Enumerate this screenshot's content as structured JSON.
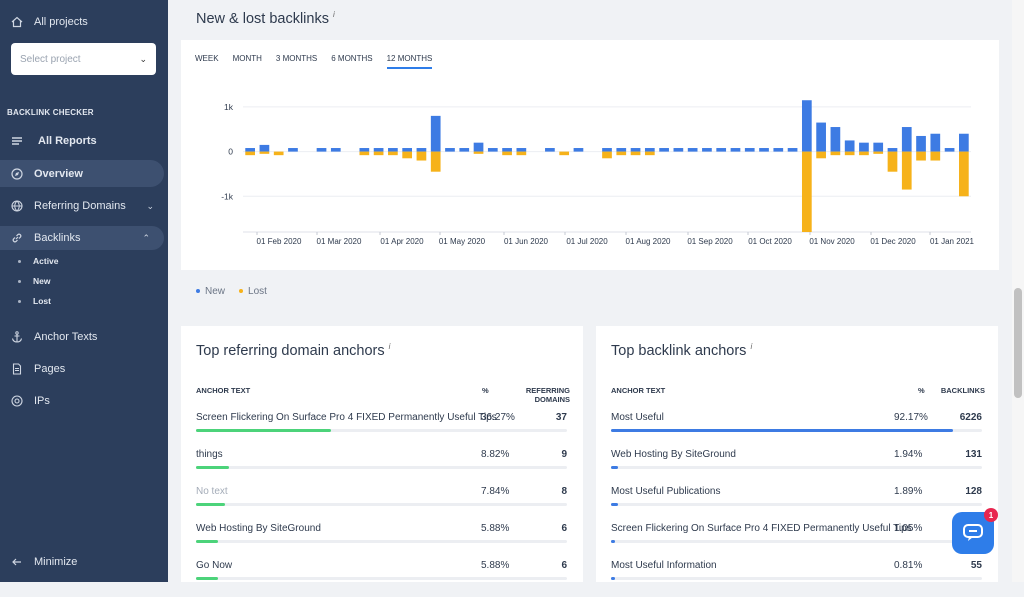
{
  "sidebar": {
    "all_projects": "All projects",
    "select_placeholder": "Select project",
    "section": "BACKLINK CHECKER",
    "all_reports": "All Reports",
    "overview": "Overview",
    "referring_domains": "Referring Domains",
    "backlinks": "Backlinks",
    "sub": [
      "Active",
      "New",
      "Lost"
    ],
    "anchor_texts": "Anchor Texts",
    "pages": "Pages",
    "ips": "IPs",
    "minimize": "Minimize"
  },
  "backlinks_panel": {
    "title": "New & lost backlinks",
    "info": "i",
    "tabs": [
      "WEEK",
      "MONTH",
      "3 MONTHS",
      "6 MONTHS",
      "12 MONTHS"
    ],
    "selected_tab": "12 MONTHS",
    "legend_new": "New",
    "legend_lost": "Lost"
  },
  "chart_data": {
    "type": "bar",
    "title": "",
    "y_tick_labels": [
      "1k",
      "0",
      "-1k"
    ],
    "ylim": [
      -1800,
      1200
    ],
    "x_tick_labels": [
      "01 Feb 2020",
      "01 Mar 2020",
      "01 Apr 2020",
      "01 May 2020",
      "01 Jun 2020",
      "01 Jul 2020",
      "01 Aug 2020",
      "01 Sep 2020",
      "01 Oct 2020",
      "01 Nov 2020",
      "01 Dec 2020",
      "01 Jan 2021"
    ],
    "series": [
      {
        "name": "New",
        "color": "#3d7be3",
        "values": [
          80,
          150,
          0,
          80,
          0,
          80,
          80,
          0,
          80,
          80,
          80,
          80,
          80,
          800,
          80,
          80,
          200,
          80,
          80,
          80,
          0,
          80,
          0,
          80,
          0,
          80,
          80,
          80,
          80,
          80,
          80,
          80,
          80,
          80,
          80,
          80,
          80,
          80,
          80,
          1150,
          650,
          550,
          250,
          200,
          200,
          80,
          550,
          350,
          400,
          80,
          400
        ]
      },
      {
        "name": "Lost",
        "color": "#f6b21a",
        "values": [
          -80,
          -50,
          -80,
          0,
          0,
          0,
          0,
          0,
          -80,
          -80,
          -80,
          -150,
          -200,
          -450,
          0,
          0,
          -50,
          0,
          -80,
          -80,
          0,
          0,
          -80,
          0,
          0,
          -150,
          -80,
          -80,
          -80,
          0,
          0,
          0,
          0,
          0,
          0,
          0,
          0,
          0,
          0,
          -1800,
          -150,
          -80,
          -80,
          -80,
          -50,
          -450,
          -850,
          -200,
          -200,
          0,
          -1000
        ]
      }
    ]
  },
  "ref_domains": {
    "title": "Top referring domain anchors",
    "info": "i",
    "col_anchor": "ANCHOR TEXT",
    "col_pct": "%",
    "col_count_1": "REFERRING",
    "col_count_2": "DOMAINS",
    "bar_color": "#4cd37a",
    "rows": [
      {
        "text": "Screen Flickering On Surface Pro 4 FIXED Permanently Useful Tips",
        "pct": "36.27%",
        "count": "37",
        "fill": 0.3627,
        "muted": false
      },
      {
        "text": "things",
        "pct": "8.82%",
        "count": "9",
        "fill": 0.0882,
        "muted": false
      },
      {
        "text": "No text",
        "pct": "7.84%",
        "count": "8",
        "fill": 0.0784,
        "muted": true
      },
      {
        "text": "Web Hosting By SiteGround",
        "pct": "5.88%",
        "count": "6",
        "fill": 0.0588,
        "muted": false
      },
      {
        "text": "Go Now",
        "pct": "5.88%",
        "count": "6",
        "fill": 0.0588,
        "muted": false
      }
    ]
  },
  "backlink_anchors": {
    "title": "Top backlink anchors",
    "info": "i",
    "col_anchor": "ANCHOR TEXT",
    "col_pct": "%",
    "col_count": "BACKLINKS",
    "bar_color": "#3d7be3",
    "rows": [
      {
        "text": "Most Useful",
        "pct": "92.17%",
        "count": "6226",
        "fill": 0.9217
      },
      {
        "text": "Web Hosting By SiteGround",
        "pct": "1.94%",
        "count": "131",
        "fill": 0.0194
      },
      {
        "text": "Most Useful Publications",
        "pct": "1.89%",
        "count": "128",
        "fill": 0.0189
      },
      {
        "text": "Screen Flickering On Surface Pro 4 FIXED Permanently Useful Tips",
        "pct": "1.05%",
        "count": "",
        "fill": 0.0105
      },
      {
        "text": "Most Useful Information",
        "pct": "0.81%",
        "count": "55",
        "fill": 0.0081
      }
    ]
  },
  "chat_widget": {
    "badge": "1"
  }
}
